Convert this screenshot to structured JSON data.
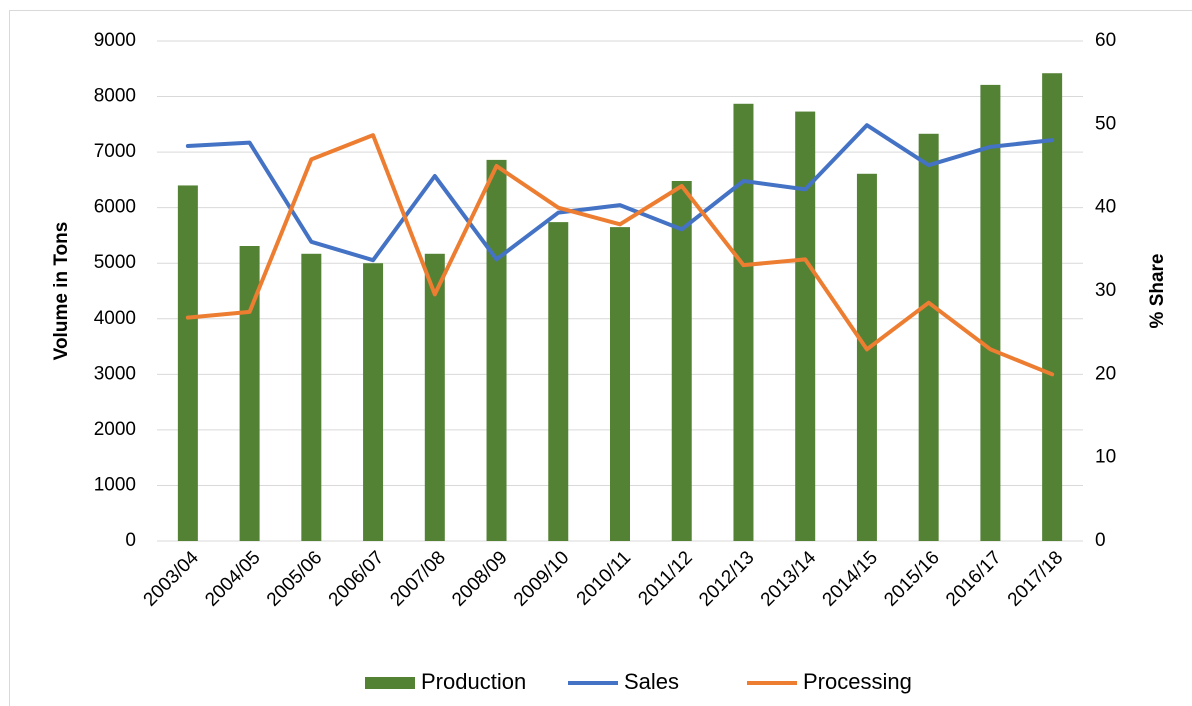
{
  "chart_data": {
    "type": "bar_line",
    "categories": [
      "2003/04",
      "2004/05",
      "2005/06",
      "2006/07",
      "2007/08",
      "2008/09",
      "2009/10",
      "2010/11",
      "2011/12",
      "2012/13",
      "2013/14",
      "2014/15",
      "2015/16",
      "2016/17",
      "2017/18"
    ],
    "series": [
      {
        "name": "Production",
        "type": "bar",
        "color": "#548235",
        "axis": "y",
        "values": [
          6400,
          5310,
          5170,
          5000,
          5170,
          6860,
          5740,
          5650,
          6480,
          7870,
          7730,
          6610,
          7330,
          8210,
          8420
        ]
      },
      {
        "name": "Sales",
        "type": "line",
        "color": "#4472c4",
        "axis": "y2",
        "values": [
          47.4,
          47.8,
          35.9,
          33.7,
          43.8,
          33.8,
          39.4,
          40.3,
          37.4,
          43.2,
          42.2,
          49.9,
          45.1,
          47.3,
          48.1
        ]
      },
      {
        "name": "Processing",
        "type": "line",
        "color": "#ed7d31",
        "axis": "y2",
        "values": [
          26.8,
          27.5,
          45.8,
          48.7,
          29.6,
          45.0,
          40.0,
          38.0,
          42.6,
          33.1,
          33.8,
          23.0,
          28.6,
          23.0,
          20.0
        ]
      }
    ],
    "ylabel": "Volume in Tons",
    "y2label": "% Share",
    "ylim": [
      0,
      9000
    ],
    "yticks": [
      0,
      1000,
      2000,
      3000,
      4000,
      5000,
      6000,
      7000,
      8000,
      9000
    ],
    "y2lim": [
      0,
      60
    ],
    "y2ticks": [
      0,
      10,
      20,
      30,
      40,
      50,
      60
    ],
    "grid": true,
    "legend": "bottom"
  }
}
